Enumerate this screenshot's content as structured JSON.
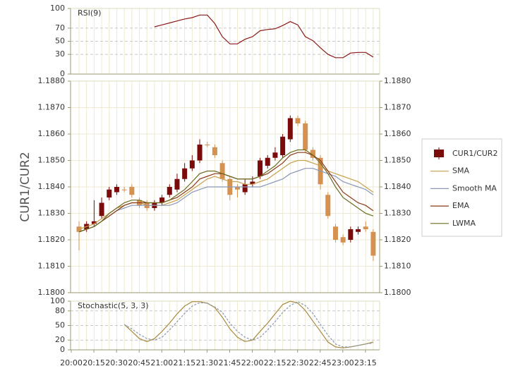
{
  "chart_data": [
    {
      "type": "candlestick",
      "y_label": "CUR1/CUR2",
      "categories": [
        "20:00",
        null,
        null,
        "20:15",
        null,
        null,
        "20:30",
        null,
        null,
        "20:45",
        null,
        null,
        "21:00",
        null,
        null,
        "21:15",
        null,
        null,
        "21:30",
        null,
        null,
        "21:45",
        null,
        null,
        "22:00",
        null,
        null,
        "22:15",
        null,
        null,
        "22:30",
        null,
        null,
        "22:45",
        null,
        null,
        "23:00",
        null,
        null,
        "23:15"
      ],
      "series": [
        {
          "name": "CUR1/CUR2",
          "type": "candlestick",
          "up_color": "#7b0a0a",
          "down_color": "#d4914f",
          "open": [
            1.1825,
            1.1824,
            1.1826,
            1.1829,
            1.1836,
            1.1838,
            1.1839,
            1.184,
            1.1835,
            1.1834,
            1.1832,
            1.1834,
            1.1837,
            1.1839,
            1.1843,
            1.1847,
            1.185,
            1.1856,
            1.1855,
            1.1849,
            1.1843,
            1.184,
            1.1838,
            1.1841,
            1.1844,
            1.1848,
            1.1851,
            1.1852,
            1.1858,
            1.1866,
            1.1864,
            1.1854,
            1.1851,
            1.1837,
            1.1825,
            1.1821,
            1.182,
            1.1823,
            1.1825,
            1.1823
          ],
          "high": [
            1.1827,
            1.1827,
            1.1835,
            1.1836,
            1.184,
            1.1841,
            1.184,
            1.1841,
            1.1836,
            1.1835,
            1.1835,
            1.1837,
            1.1841,
            1.1845,
            1.1849,
            1.1852,
            1.1858,
            1.1857,
            1.1856,
            1.185,
            1.1844,
            1.1841,
            1.1843,
            1.1844,
            1.1851,
            1.1852,
            1.1855,
            1.186,
            1.1867,
            1.1867,
            1.1865,
            1.1855,
            1.1852,
            1.1838,
            1.1826,
            1.1822,
            1.1825,
            1.1825,
            1.1827,
            1.1824
          ],
          "low": [
            1.1816,
            1.1823,
            1.1825,
            1.1828,
            1.1835,
            1.1837,
            1.1838,
            1.1836,
            1.1832,
            1.1831,
            1.1831,
            1.1833,
            1.1836,
            1.1838,
            1.1842,
            1.1846,
            1.1849,
            1.1855,
            1.1851,
            1.1842,
            1.1835,
            1.1836,
            1.1837,
            1.184,
            1.1843,
            1.1847,
            1.185,
            1.1851,
            1.1857,
            1.1863,
            1.1853,
            1.185,
            1.1839,
            1.1828,
            1.1819,
            1.1818,
            1.1819,
            1.1822,
            1.1823,
            1.1812
          ],
          "close": [
            1.1823,
            1.1826,
            1.1827,
            1.1834,
            1.1839,
            1.184,
            1.1839,
            1.1837,
            1.1833,
            1.1832,
            1.1834,
            1.1836,
            1.184,
            1.1843,
            1.1847,
            1.185,
            1.1856,
            1.1856,
            1.1852,
            1.1843,
            1.1837,
            1.1839,
            1.1841,
            1.1842,
            1.185,
            1.1851,
            1.1853,
            1.1859,
            1.1866,
            1.1864,
            1.1854,
            1.1851,
            1.1841,
            1.1829,
            1.182,
            1.1819,
            1.1824,
            1.1824,
            1.1824,
            1.1814
          ]
        },
        {
          "name": "SMA",
          "color": "#c8a04e",
          "values": [
            1.1824,
            1.1825,
            1.1826,
            1.1828,
            1.183,
            1.1832,
            1.1833,
            1.1834,
            1.1834,
            1.1833,
            1.1833,
            1.1833,
            1.1834,
            1.1835,
            1.1837,
            1.1839,
            1.1841,
            1.1843,
            1.1844,
            1.1843,
            1.1842,
            1.1842,
            1.1841,
            1.1841,
            1.1842,
            1.1843,
            1.1845,
            1.1847,
            1.1849,
            1.185,
            1.185,
            1.1849,
            1.1848,
            1.1846,
            1.1845,
            1.1844,
            1.1843,
            1.1842,
            1.184,
            1.1838
          ]
        },
        {
          "name": "Smooth MA",
          "color": "#8a98b8",
          "values": [
            1.1823,
            1.1824,
            1.1825,
            1.1827,
            1.1829,
            1.1831,
            1.1832,
            1.1833,
            1.1833,
            1.1833,
            1.1833,
            1.1833,
            1.1833,
            1.1834,
            1.1836,
            1.1838,
            1.1839,
            1.184,
            1.184,
            1.184,
            1.184,
            1.184,
            1.184,
            1.184,
            1.184,
            1.1841,
            1.1842,
            1.1843,
            1.1845,
            1.1846,
            1.1847,
            1.1847,
            1.1846,
            1.1845,
            1.1844,
            1.1842,
            1.1841,
            1.184,
            1.1839,
            1.1837
          ]
        },
        {
          "name": "EMA",
          "color": "#8b3a1a",
          "values": [
            1.1823,
            1.1824,
            1.1825,
            1.1827,
            1.1829,
            1.1831,
            1.1833,
            1.1834,
            1.1834,
            1.1834,
            1.1834,
            1.1834,
            1.1835,
            1.1836,
            1.1838,
            1.184,
            1.1843,
            1.1844,
            1.1845,
            1.1845,
            1.1844,
            1.1843,
            1.1843,
            1.1843,
            1.1844,
            1.1845,
            1.1847,
            1.1849,
            1.1852,
            1.1853,
            1.1853,
            1.1852,
            1.185,
            1.1846,
            1.1842,
            1.1838,
            1.1836,
            1.1834,
            1.1833,
            1.1831
          ]
        },
        {
          "name": "LWMA",
          "color": "#6b6b20",
          "values": [
            1.1823,
            1.1824,
            1.1825,
            1.1827,
            1.183,
            1.1832,
            1.1834,
            1.1835,
            1.1835,
            1.1834,
            1.1834,
            1.1834,
            1.1835,
            1.1837,
            1.1839,
            1.1842,
            1.1845,
            1.1846,
            1.1846,
            1.1845,
            1.1844,
            1.1843,
            1.1843,
            1.1843,
            1.1844,
            1.1846,
            1.1848,
            1.1851,
            1.1853,
            1.1854,
            1.1854,
            1.1852,
            1.1849,
            1.1845,
            1.184,
            1.1836,
            1.1834,
            1.1832,
            1.183,
            1.1829
          ]
        }
      ],
      "ylim": [
        1.18,
        1.188
      ],
      "yticks": [
        {
          "value": 1.18,
          "label": "1.1800"
        },
        {
          "value": 1.181,
          "label": "1.1810"
        },
        {
          "value": 1.182,
          "label": "1.1820"
        },
        {
          "value": 1.183,
          "label": "1.1830"
        },
        {
          "value": 1.184,
          "label": "1.1840"
        },
        {
          "value": 1.185,
          "label": "1.1850"
        },
        {
          "value": 1.186,
          "label": "1.1860"
        },
        {
          "value": 1.187,
          "label": "1.1870"
        },
        {
          "value": 1.188,
          "label": "1.1880"
        }
      ]
    },
    {
      "type": "line",
      "title": "RSI(9)",
      "series": [
        {
          "color": "#8b1a1a",
          "values": [
            null,
            null,
            null,
            null,
            null,
            null,
            null,
            null,
            null,
            null,
            72,
            75,
            78,
            81,
            84,
            86,
            90,
            90,
            77,
            57,
            46,
            46,
            53,
            57,
            66,
            68,
            69,
            74,
            80,
            75,
            57,
            51,
            40,
            30,
            25,
            25,
            32,
            33,
            33,
            26
          ]
        }
      ],
      "ylim": [
        0,
        100
      ],
      "yticks": [
        0,
        30,
        50,
        70,
        100
      ]
    },
    {
      "type": "line",
      "title": "Stochastic(5, 3, 3)",
      "series": [
        {
          "color": "#a88a3c",
          "values": [
            null,
            null,
            null,
            null,
            null,
            null,
            52,
            38,
            23,
            17,
            23,
            38,
            55,
            74,
            90,
            99,
            99,
            96,
            87,
            67,
            43,
            26,
            17,
            20,
            38,
            55,
            74,
            93,
            100,
            96,
            81,
            59,
            38,
            16,
            6,
            4,
            6,
            9,
            12,
            16
          ]
        },
        {
          "color": "#8a98b0",
          "dash": true,
          "values": [
            null,
            null,
            null,
            null,
            null,
            null,
            52,
            43,
            32,
            23,
            20,
            26,
            41,
            58,
            75,
            90,
            97,
            96,
            88,
            77,
            55,
            38,
            26,
            20,
            26,
            41,
            58,
            77,
            91,
            99,
            91,
            75,
            52,
            30,
            12,
            6,
            6,
            9,
            12,
            14
          ]
        }
      ],
      "ylim": [
        0,
        100
      ],
      "yticks": [
        0,
        20,
        50,
        80,
        100
      ]
    }
  ]
}
